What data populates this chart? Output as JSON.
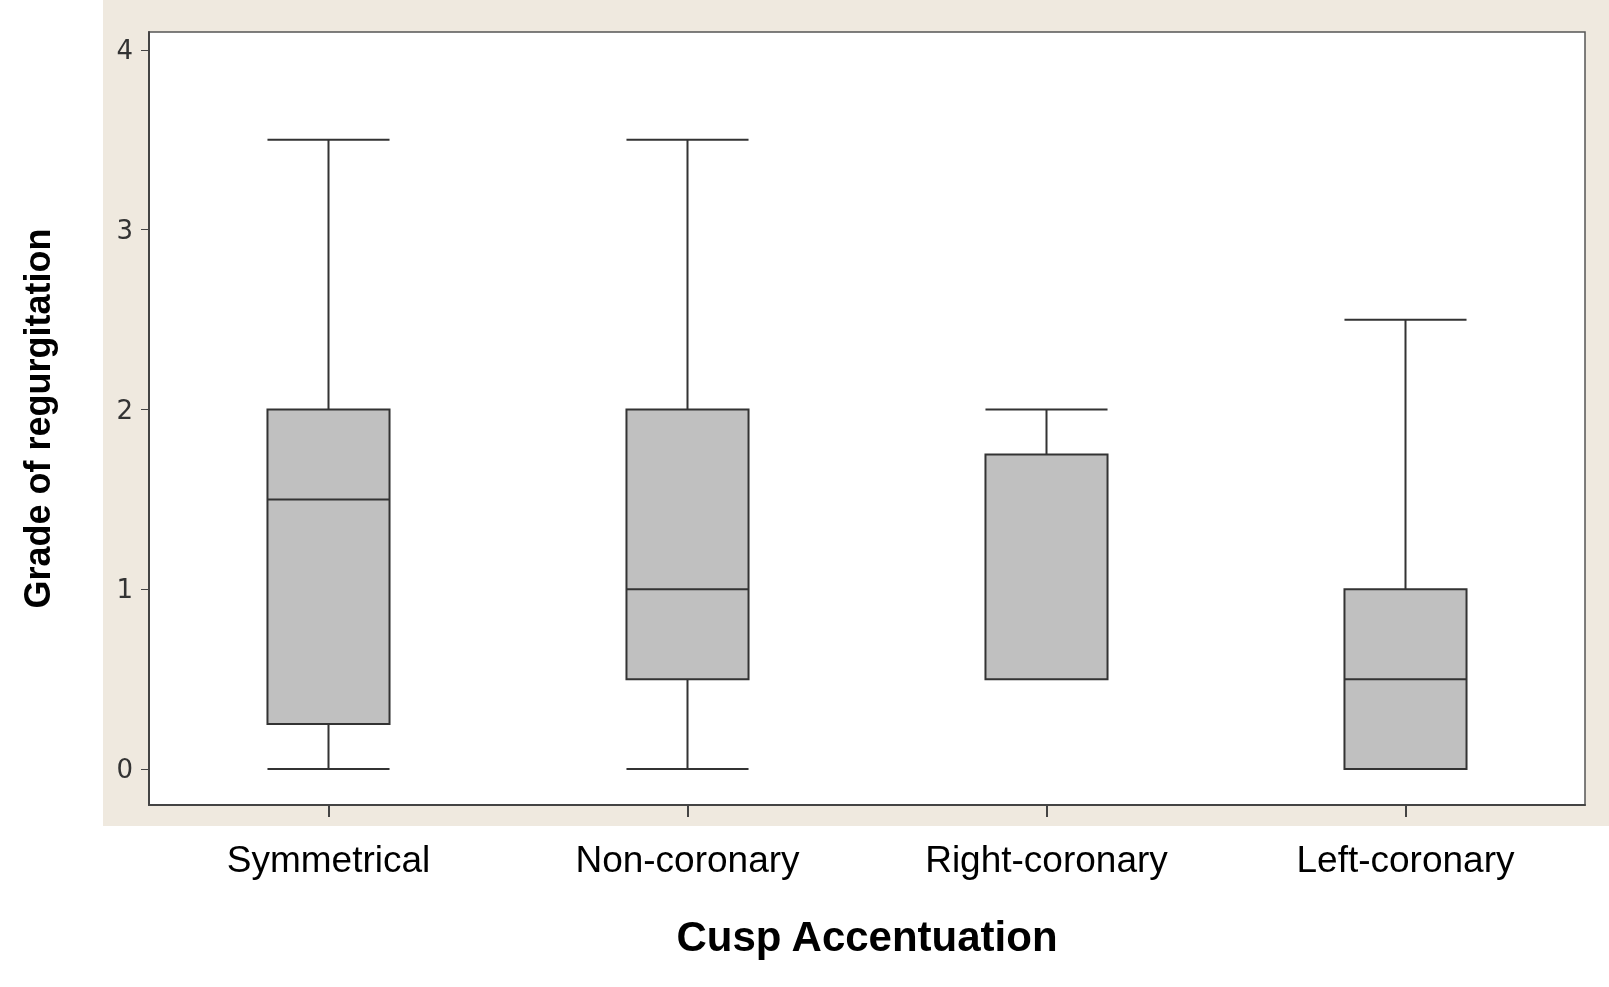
{
  "chart_data": {
    "type": "box",
    "xlabel": "Cusp Accentuation",
    "ylabel": "Grade of regurgitation",
    "categories": [
      "Symmetrical",
      "Non-coronary",
      "Right-coronary",
      "Left-coronary"
    ],
    "color": "#c0c0c0",
    "boxes": [
      {
        "low": 0,
        "q1": 0.25,
        "median": 1.5,
        "q3": 2,
        "high": 3.5
      },
      {
        "low": 0,
        "q1": 0.5,
        "median": 1,
        "q3": 2,
        "high": 3.5
      },
      {
        "low": 0.5,
        "q1": 0.5,
        "median": 0.5,
        "q3": 1.75,
        "high": 2
      },
      {
        "low": 0,
        "q1": 0,
        "median": 0.5,
        "q3": 1,
        "high": 2.5
      }
    ],
    "ylim": [
      -0.2,
      4.1
    ],
    "yticks": [
      0,
      1,
      2,
      3,
      4
    ],
    "grid": false
  }
}
